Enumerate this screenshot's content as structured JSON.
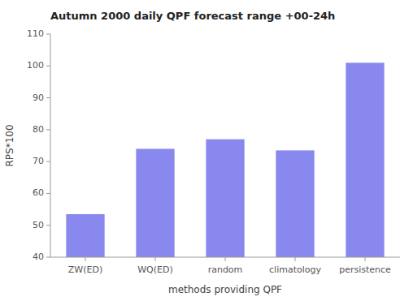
{
  "chart_data": {
    "type": "bar",
    "title": "Autumn 2000 daily QPF forecast range +00-24h",
    "categories": [
      "ZW(ED)",
      "WQ(ED)",
      "random",
      "climatology",
      "persistence"
    ],
    "values": [
      53.5,
      74.0,
      77.0,
      73.5,
      101.0
    ],
    "color": "#8888ee",
    "xlabel": "methods providing QPF",
    "ylabel": "RPS*100",
    "ylim": [
      40,
      110
    ],
    "yticks": [
      40,
      50,
      60,
      70,
      80,
      90,
      100,
      110
    ],
    "grid": false
  }
}
